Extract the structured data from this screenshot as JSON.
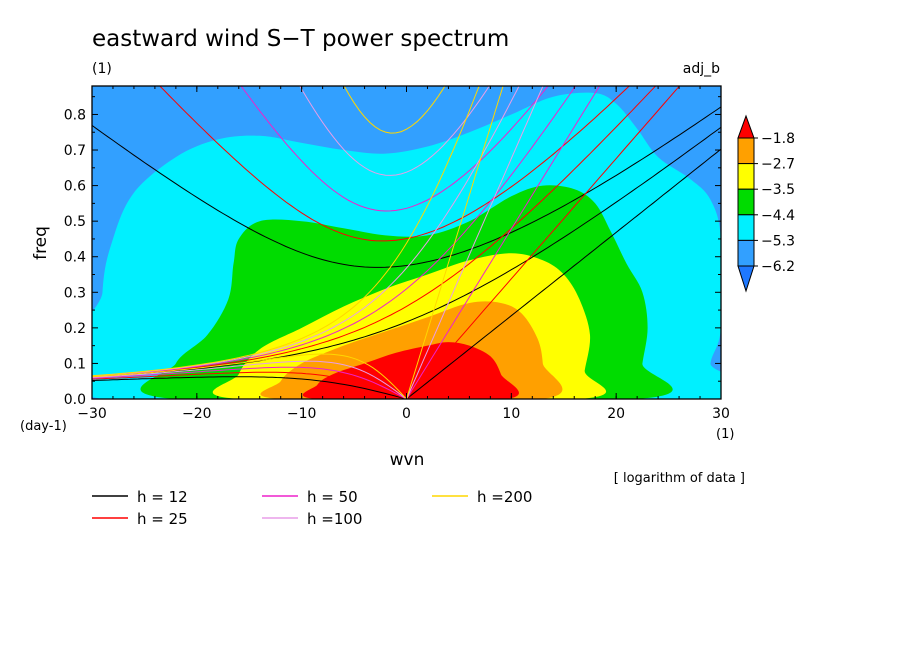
{
  "chart_data": {
    "type": "heatmap",
    "title": "eastward wind S−T power spectrum",
    "subtitle_left": "(1)",
    "subtitle_right": "adj_b",
    "xlabel": "wvn",
    "ylabel": "freq",
    "x_unit": "(1)",
    "y_unit": "(day-1)",
    "note": "[ logarithm of data ]",
    "xlim": [
      -30,
      30
    ],
    "ylim": [
      0,
      0.88
    ],
    "x_ticks": [
      -30,
      -20,
      -10,
      0,
      10,
      20,
      30
    ],
    "x_tick_labels": [
      "−30",
      "−20",
      "−10",
      "0",
      "10",
      "20",
      "30"
    ],
    "y_ticks": [
      0.0,
      0.1,
      0.2,
      0.3,
      0.4,
      0.5,
      0.6,
      0.7,
      0.8
    ],
    "y_tick_labels": [
      "0.0",
      "0.1",
      "0.2",
      "0.3",
      "0.4",
      "0.5",
      "0.6",
      "0.7",
      "0.8"
    ],
    "colorbar": {
      "levels": [
        "−1.8",
        "−2.7",
        "−3.5",
        "−4.4",
        "−5.3",
        "−6.2"
      ],
      "colors": [
        "#1e78ff",
        "#32a0ff",
        "#00f0ff",
        "#00dc00",
        "#ffff00",
        "#ffa000",
        "#ff0000"
      ]
    },
    "contours": [
      {
        "level": "−6.2",
        "color": "#32a0ff",
        "points": [
          [
            -30,
            0
          ],
          [
            -30,
            0.88
          ],
          [
            30,
            0.88
          ],
          [
            30,
            0
          ]
        ]
      },
      {
        "level": "−5.3",
        "color": "#00f0ff",
        "points": [
          [
            -29,
            0
          ],
          [
            -29,
            0.3
          ],
          [
            -28,
            0.45
          ],
          [
            -26,
            0.58
          ],
          [
            -22,
            0.68
          ],
          [
            -18,
            0.73
          ],
          [
            -14,
            0.74
          ],
          [
            -10,
            0.72
          ],
          [
            -6,
            0.7
          ],
          [
            -2,
            0.69
          ],
          [
            2,
            0.71
          ],
          [
            6,
            0.75
          ],
          [
            10,
            0.8
          ],
          [
            14,
            0.85
          ],
          [
            18,
            0.86
          ],
          [
            20,
            0.83
          ],
          [
            22,
            0.76
          ],
          [
            24,
            0.68
          ],
          [
            27,
            0.62
          ],
          [
            29,
            0.56
          ],
          [
            30,
            0.45
          ],
          [
            30,
            0.2
          ],
          [
            29,
            0.1
          ],
          [
            29,
            0
          ]
        ]
      },
      {
        "level": "−4.4",
        "color": "#00dc00",
        "points": [
          [
            -22,
            0
          ],
          [
            -22,
            0.1
          ],
          [
            -19,
            0.18
          ],
          [
            -17,
            0.28
          ],
          [
            -16.5,
            0.38
          ],
          [
            -16,
            0.45
          ],
          [
            -14,
            0.5
          ],
          [
            -10,
            0.5
          ],
          [
            -6,
            0.48
          ],
          [
            -2,
            0.46
          ],
          [
            2,
            0.46
          ],
          [
            6,
            0.5
          ],
          [
            10,
            0.57
          ],
          [
            13,
            0.6
          ],
          [
            16,
            0.59
          ],
          [
            18,
            0.55
          ],
          [
            19.5,
            0.47
          ],
          [
            21,
            0.38
          ],
          [
            22.5,
            0.3
          ],
          [
            23,
            0.2
          ],
          [
            22.5,
            0.1
          ],
          [
            22,
            0
          ]
        ]
      },
      {
        "level": "−3.5",
        "color": "#ffff00",
        "points": [
          [
            -16,
            0
          ],
          [
            -16,
            0.07
          ],
          [
            -14,
            0.14
          ],
          [
            -10,
            0.2
          ],
          [
            -6,
            0.26
          ],
          [
            -2,
            0.31
          ],
          [
            2,
            0.35
          ],
          [
            6,
            0.39
          ],
          [
            10,
            0.41
          ],
          [
            13,
            0.39
          ],
          [
            15,
            0.35
          ],
          [
            16.5,
            0.28
          ],
          [
            17.5,
            0.18
          ],
          [
            17,
            0.08
          ],
          [
            16.5,
            0
          ]
        ]
      },
      {
        "level": "−2.7",
        "color": "#ffa000",
        "points": [
          [
            -12,
            0
          ],
          [
            -12,
            0.05
          ],
          [
            -10,
            0.1
          ],
          [
            -6,
            0.15
          ],
          [
            -2,
            0.19
          ],
          [
            2,
            0.23
          ],
          [
            6,
            0.27
          ],
          [
            9,
            0.27
          ],
          [
            11,
            0.24
          ],
          [
            12.5,
            0.17
          ],
          [
            13,
            0.1
          ],
          [
            13,
            0
          ]
        ]
      },
      {
        "level": "−1.8",
        "color": "#ff0000",
        "points": [
          [
            -8.5,
            0
          ],
          [
            -8.5,
            0.04
          ],
          [
            -7,
            0.07
          ],
          [
            -4,
            0.1
          ],
          [
            -1,
            0.13
          ],
          [
            2,
            0.15
          ],
          [
            4,
            0.16
          ],
          [
            6,
            0.15
          ],
          [
            8,
            0.12
          ],
          [
            9,
            0.07
          ],
          [
            9.5,
            0
          ]
        ]
      }
    ],
    "dispersion_curves": [
      {
        "name": "h = 12",
        "color": "#000000"
      },
      {
        "name": "h = 25",
        "color": "#ff0000"
      },
      {
        "name": "h = 50",
        "color": "#ee22cc"
      },
      {
        "name": "h =100",
        "color": "#e89ee8"
      },
      {
        "name": "h =200",
        "color": "#ffd700"
      }
    ]
  }
}
